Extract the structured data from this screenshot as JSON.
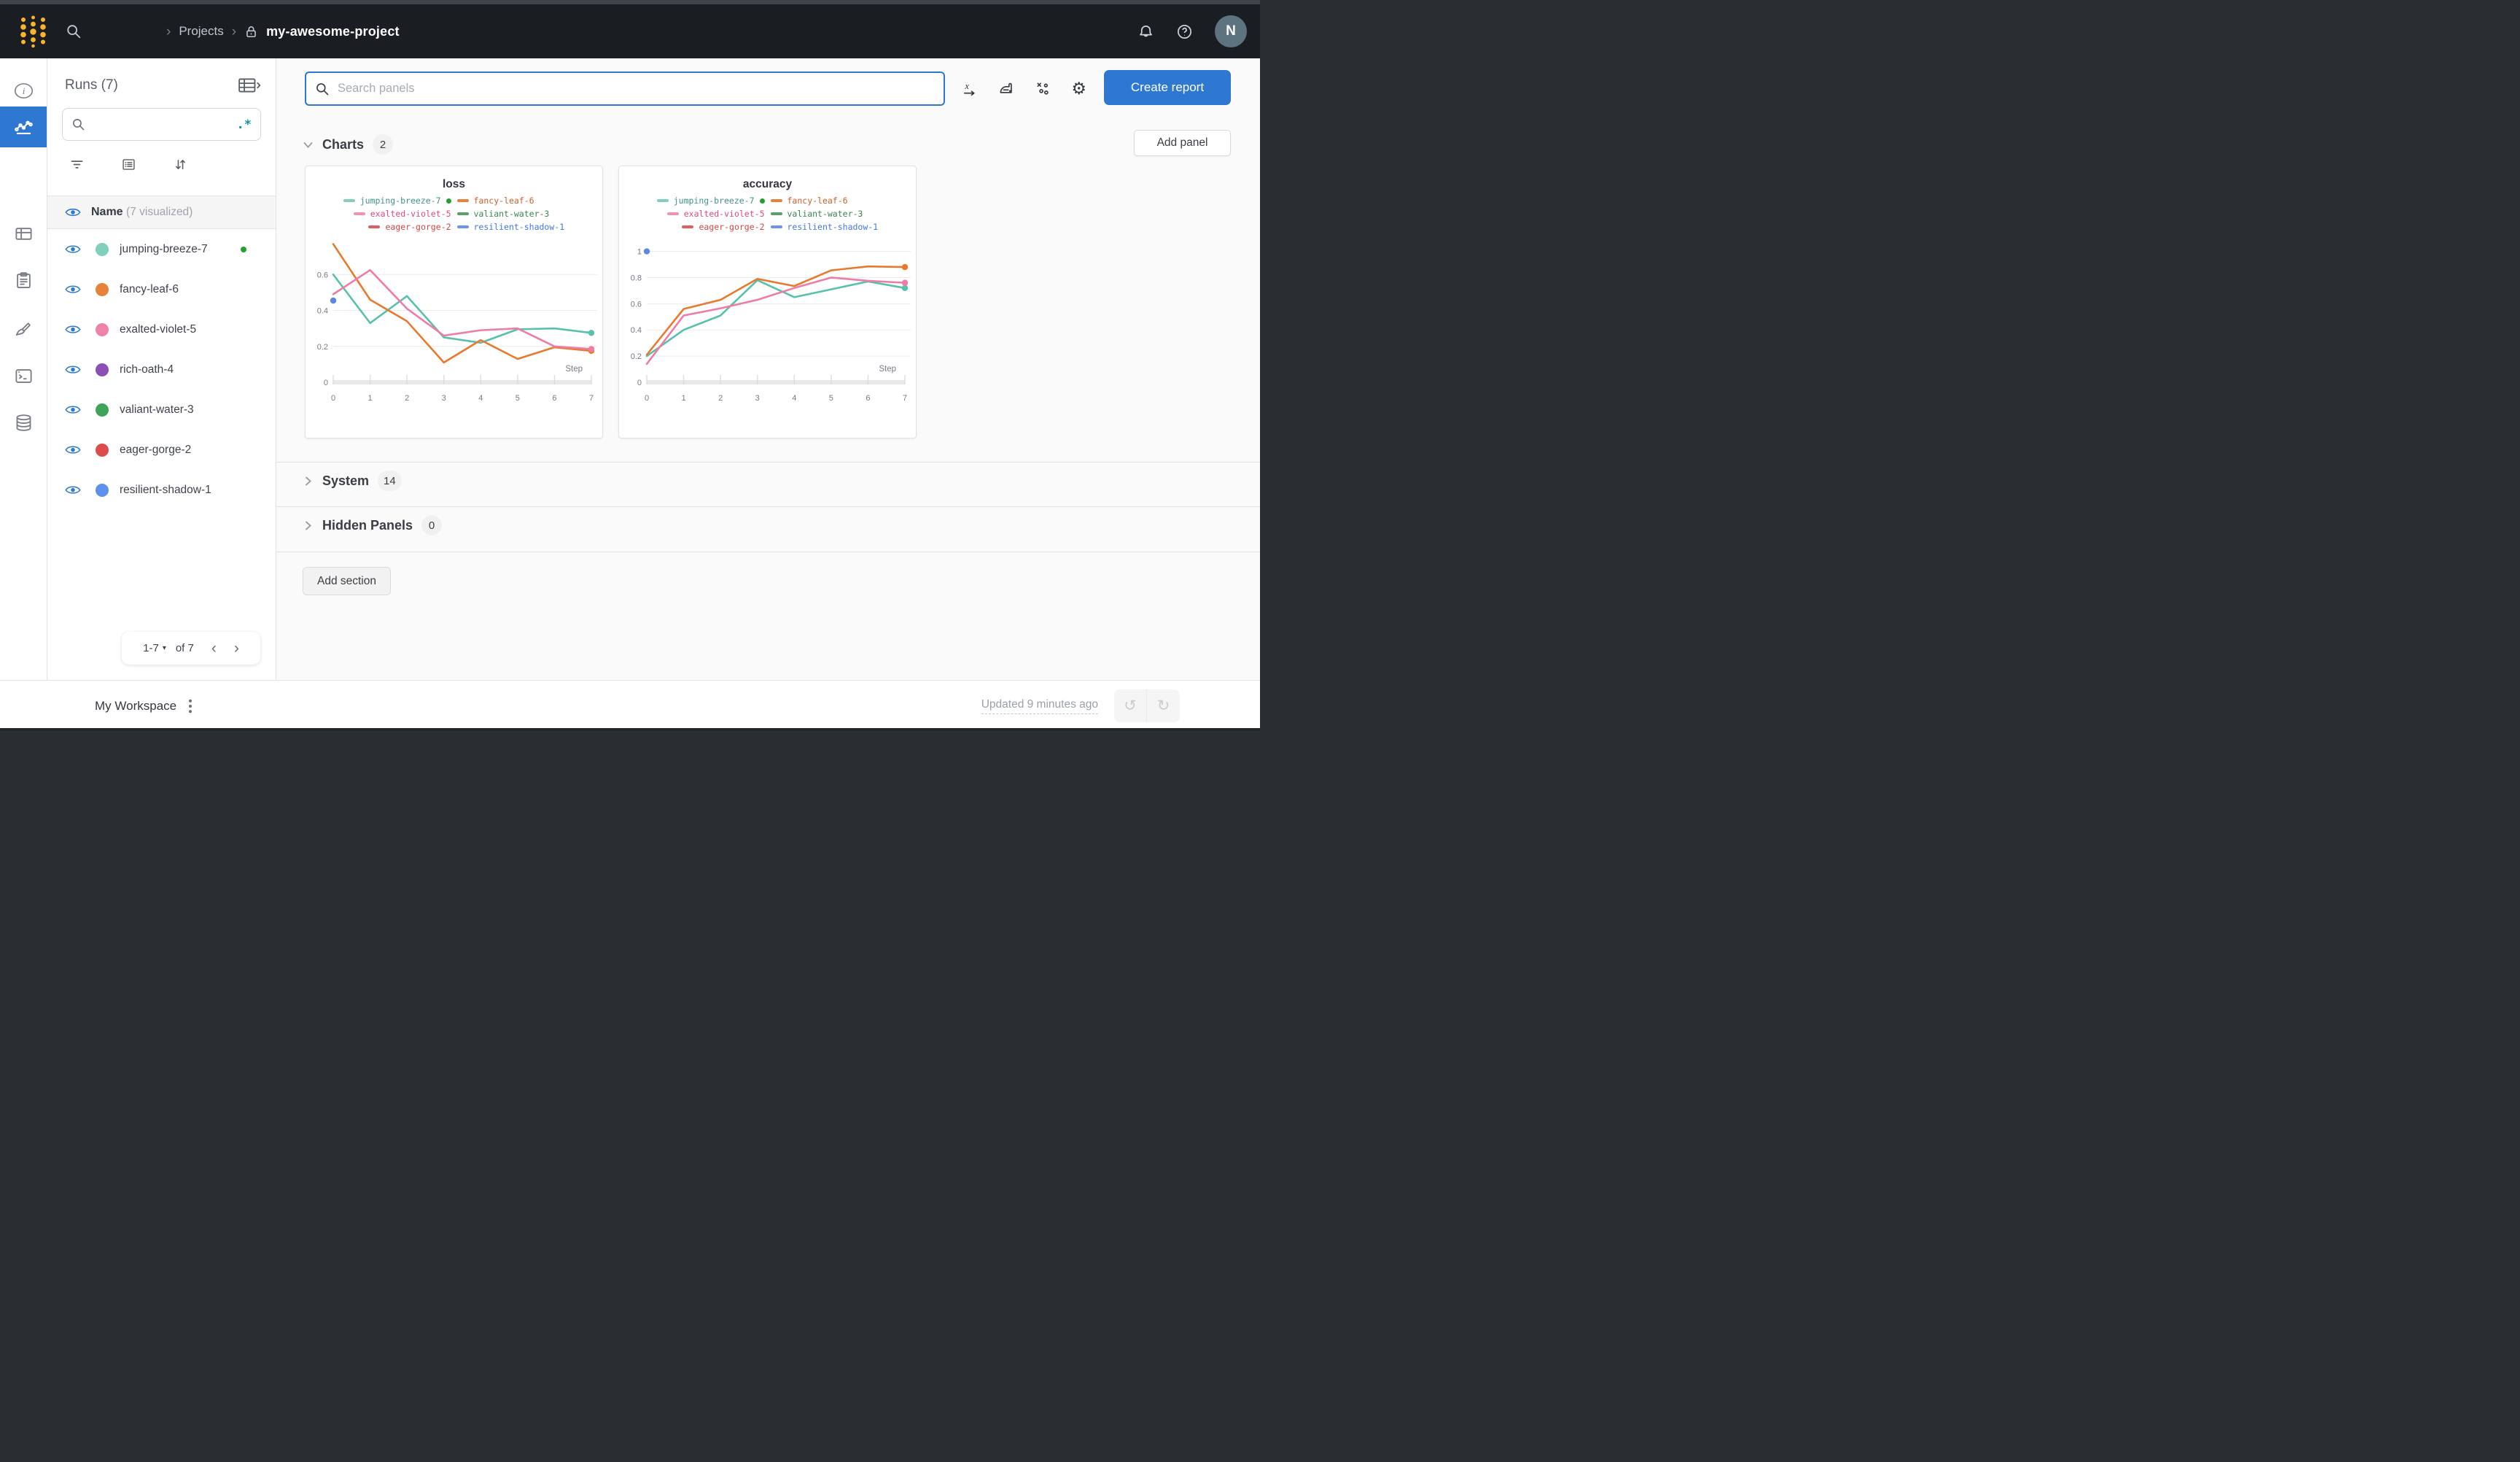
{
  "topbar": {
    "breadcrumb": {
      "separator": "›",
      "projects_label": "Projects",
      "project_name": "my-awesome-project"
    },
    "avatar_initial": "N"
  },
  "rail": {
    "items": [
      {
        "name": "overview",
        "icon": "info",
        "active": false
      },
      {
        "name": "workspace-charts",
        "icon": "linechart",
        "active": true
      },
      {
        "name": "table",
        "icon": "panelgrid",
        "active": false
      },
      {
        "name": "logs",
        "icon": "clipboard",
        "active": false
      },
      {
        "name": "sweeps",
        "icon": "brush",
        "active": false
      },
      {
        "name": "terminal",
        "icon": "terminal",
        "active": false
      },
      {
        "name": "artifacts",
        "icon": "database",
        "active": false
      }
    ]
  },
  "runs_sidebar": {
    "title": "Runs (7)",
    "regex_toggle": ".*",
    "search_placeholder": "",
    "header": {
      "name_label": "Name",
      "visualized_label": "(7 visualized)"
    },
    "runs": [
      {
        "name": "jumping-breeze-7",
        "color": "#7fd0bd",
        "running": true
      },
      {
        "name": "fancy-leaf-6",
        "color": "#e8823a",
        "running": false
      },
      {
        "name": "exalted-violet-5",
        "color": "#f083ab",
        "running": false
      },
      {
        "name": "rich-oath-4",
        "color": "#8b4fb5",
        "running": false
      },
      {
        "name": "valiant-water-3",
        "color": "#3fa35a",
        "running": false
      },
      {
        "name": "eager-gorge-2",
        "color": "#dc4c4c",
        "running": false
      },
      {
        "name": "resilient-shadow-1",
        "color": "#5c92ec",
        "running": false
      }
    ],
    "pagination": {
      "range_label": "1-7",
      "caret": "▾",
      "of_label": "of 7",
      "prev": "‹",
      "next": "›"
    }
  },
  "main": {
    "panel_search_placeholder": "Search panels",
    "create_report_label": "Create report",
    "add_panel_label": "Add panel",
    "add_section_label": "Add section",
    "sections": {
      "charts": {
        "label": "Charts",
        "count": "2"
      },
      "system": {
        "label": "System",
        "count": "14"
      },
      "hidden": {
        "label": "Hidden Panels",
        "count": "0"
      }
    }
  },
  "footer": {
    "workspace_label": "My Workspace",
    "updated_label": "Updated 9 minutes ago"
  },
  "accent_colors": {
    "primary_blue": "#2e78d2",
    "regex_teal": "#12969e",
    "running_green": "#23a12e"
  },
  "chart_data": [
    {
      "type": "line",
      "title": "loss",
      "xlabel": "Step",
      "x": [
        0,
        1,
        2,
        3,
        4,
        5,
        6,
        7
      ],
      "ylim": [
        0,
        0.78
      ],
      "yticks": [
        0,
        0.2,
        0.4,
        0.6
      ],
      "grid": true,
      "legend_position": "top",
      "series": [
        {
          "name": "jumping-breeze-7",
          "color": "#58c1ab",
          "values": [
            0.6,
            0.33,
            0.48,
            0.25,
            0.22,
            0.295,
            0.3,
            0.275
          ]
        },
        {
          "name": "fancy-leaf-6",
          "color": "#e8792e",
          "values": [
            0.77,
            0.46,
            0.34,
            0.11,
            0.235,
            0.13,
            0.195,
            0.175
          ]
        },
        {
          "name": "exalted-violet-5",
          "color": "#ef7ca6",
          "values": [
            0.49,
            0.625,
            0.41,
            0.26,
            0.29,
            0.3,
            0.2,
            0.185
          ]
        }
      ],
      "points": [
        {
          "name": "resilient-shadow-1",
          "color": "#5b87e6",
          "x": 0,
          "y": 0.455
        }
      ],
      "legend": [
        {
          "label": "jumping-breeze-7",
          "swatch": "#7fd0bd",
          "text_color": "#3f948a",
          "running": true
        },
        {
          "label": "fancy-leaf-6",
          "swatch": "#e8823a",
          "text_color": "#c9602a",
          "running": false
        },
        {
          "label": "exalted-violet-5",
          "swatch": "#f490b0",
          "text_color": "#e2487e",
          "running": false
        },
        {
          "label": "valiant-water-3",
          "swatch": "#57a268",
          "text_color": "#3d8452",
          "running": false
        },
        {
          "label": "eager-gorge-2",
          "swatch": "#e05e5e",
          "text_color": "#d64545",
          "running": false
        },
        {
          "label": "resilient-shadow-1",
          "swatch": "#6a97ea",
          "text_color": "#4377e2",
          "running": false
        }
      ]
    },
    {
      "type": "line",
      "title": "accuracy",
      "xlabel": "Step",
      "x": [
        0,
        1,
        2,
        3,
        4,
        5,
        6,
        7
      ],
      "ylim": [
        0,
        1.07
      ],
      "yticks": [
        0,
        0.2,
        0.4,
        0.6,
        0.8,
        1
      ],
      "grid": true,
      "legend_position": "top",
      "series": [
        {
          "name": "jumping-breeze-7",
          "color": "#58c1ab",
          "values": [
            0.2,
            0.4,
            0.51,
            0.78,
            0.65,
            0.71,
            0.77,
            0.72
          ]
        },
        {
          "name": "fancy-leaf-6",
          "color": "#e8792e",
          "values": [
            0.21,
            0.56,
            0.63,
            0.79,
            0.735,
            0.855,
            0.885,
            0.88
          ]
        },
        {
          "name": "exalted-violet-5",
          "color": "#ef7ca6",
          "values": [
            0.14,
            0.51,
            0.565,
            0.63,
            0.72,
            0.8,
            0.775,
            0.76
          ]
        }
      ],
      "points": [
        {
          "name": "resilient-shadow-1",
          "color": "#5b87e6",
          "x": 0,
          "y": 1.0
        }
      ],
      "legend": [
        {
          "label": "jumping-breeze-7",
          "swatch": "#7fd0bd",
          "text_color": "#3f948a",
          "running": true
        },
        {
          "label": "fancy-leaf-6",
          "swatch": "#e8823a",
          "text_color": "#c9602a",
          "running": false
        },
        {
          "label": "exalted-violet-5",
          "swatch": "#f490b0",
          "text_color": "#e2487e",
          "running": false
        },
        {
          "label": "valiant-water-3",
          "swatch": "#57a268",
          "text_color": "#3d8452",
          "running": false
        },
        {
          "label": "eager-gorge-2",
          "swatch": "#e05e5e",
          "text_color": "#d64545",
          "running": false
        },
        {
          "label": "resilient-shadow-1",
          "swatch": "#6a97ea",
          "text_color": "#4377e2",
          "running": false
        }
      ]
    }
  ]
}
